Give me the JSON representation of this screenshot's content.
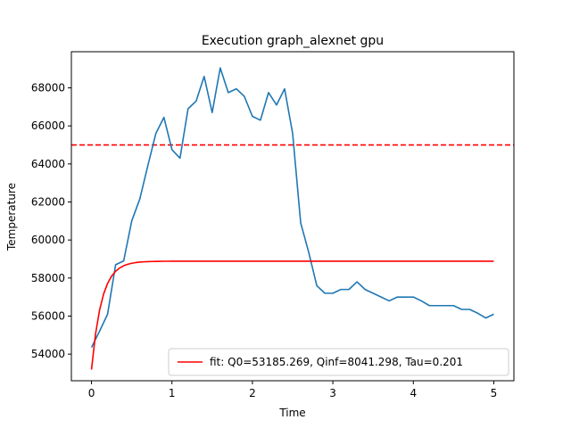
{
  "chart_data": {
    "type": "line",
    "title": "Execution graph_alexnet gpu",
    "xlabel": "Time",
    "ylabel": "Temperature",
    "xlim": [
      -0.25,
      5.25
    ],
    "ylim": [
      52600,
      69900
    ],
    "xticks": [
      0,
      1,
      2,
      3,
      4,
      5
    ],
    "xtick_labels": [
      "0",
      "1",
      "2",
      "3",
      "4",
      "5"
    ],
    "yticks": [
      54000,
      56000,
      58000,
      60000,
      62000,
      64000,
      66000,
      68000
    ],
    "ytick_labels": [
      "54000",
      "56000",
      "58000",
      "60000",
      "62000",
      "64000",
      "66000",
      "68000"
    ],
    "grid": false,
    "legend_position": "lower-right",
    "threshold": {
      "y": 65000,
      "color": "#ff0000",
      "style": "dashed"
    },
    "series": [
      {
        "color": "#1f77b4",
        "x": [
          0,
          0.1,
          0.2,
          0.3,
          0.4,
          0.5,
          0.6,
          0.7,
          0.8,
          0.9,
          1.0,
          1.1,
          1.2,
          1.3,
          1.4,
          1.5,
          1.6,
          1.7,
          1.8,
          1.9,
          2.0,
          2.1,
          2.2,
          2.3,
          2.4,
          2.5,
          2.6,
          2.7,
          2.8,
          2.9,
          3.0,
          3.1,
          3.2,
          3.3,
          3.4,
          3.5,
          3.6,
          3.7,
          3.8,
          3.9,
          4.0,
          4.1,
          4.2,
          4.3,
          4.4,
          4.5,
          4.6,
          4.7,
          4.8,
          4.9,
          5.0
        ],
        "values": [
          54350,
          55200,
          56100,
          58700,
          58900,
          61000,
          62150,
          63900,
          65600,
          66450,
          64750,
          64300,
          66900,
          67300,
          68600,
          66700,
          69050,
          67750,
          67950,
          67550,
          66500,
          66300,
          67750,
          67100,
          67950,
          65600,
          60900,
          59350,
          57600,
          57200,
          57200,
          57400,
          57400,
          57800,
          57400,
          57200,
          57000,
          56800,
          57000,
          57000,
          57000,
          56800,
          56550,
          56550,
          56550,
          56550,
          56350,
          56350,
          56150,
          55900,
          56100
        ]
      },
      {
        "name": "fit: Q0=53185.269, Qinf=8041.298, Tau=0.201",
        "color": "#ff0000",
        "fit": {
          "Q0": 53185.269,
          "Qinf": 8041.298,
          "Tau": 0.201
        },
        "x": [
          0,
          0.05,
          0.1,
          0.15,
          0.2,
          0.25,
          0.3,
          0.35,
          0.4,
          0.45,
          0.5,
          0.55,
          0.6,
          0.65,
          0.7,
          0.75,
          0.8,
          0.85,
          0.9,
          0.95,
          1.0,
          1.1,
          1.2,
          1.3,
          1.4,
          1.5,
          1.6,
          1.8,
          2.0,
          2.5,
          3.0,
          3.5,
          4.0,
          4.5,
          5.0
        ],
        "values": [
          53185,
          55050,
          56305,
          57150,
          57718,
          58100,
          58357,
          58530,
          58647,
          58725,
          58778,
          58813,
          58837,
          58853,
          58864,
          58871,
          58876,
          58880,
          58882,
          58883,
          58884,
          58885,
          58886,
          58886,
          58886,
          58886,
          58886,
          58886,
          58886,
          58886,
          58886,
          58886,
          58886,
          58886,
          58886
        ]
      }
    ]
  }
}
